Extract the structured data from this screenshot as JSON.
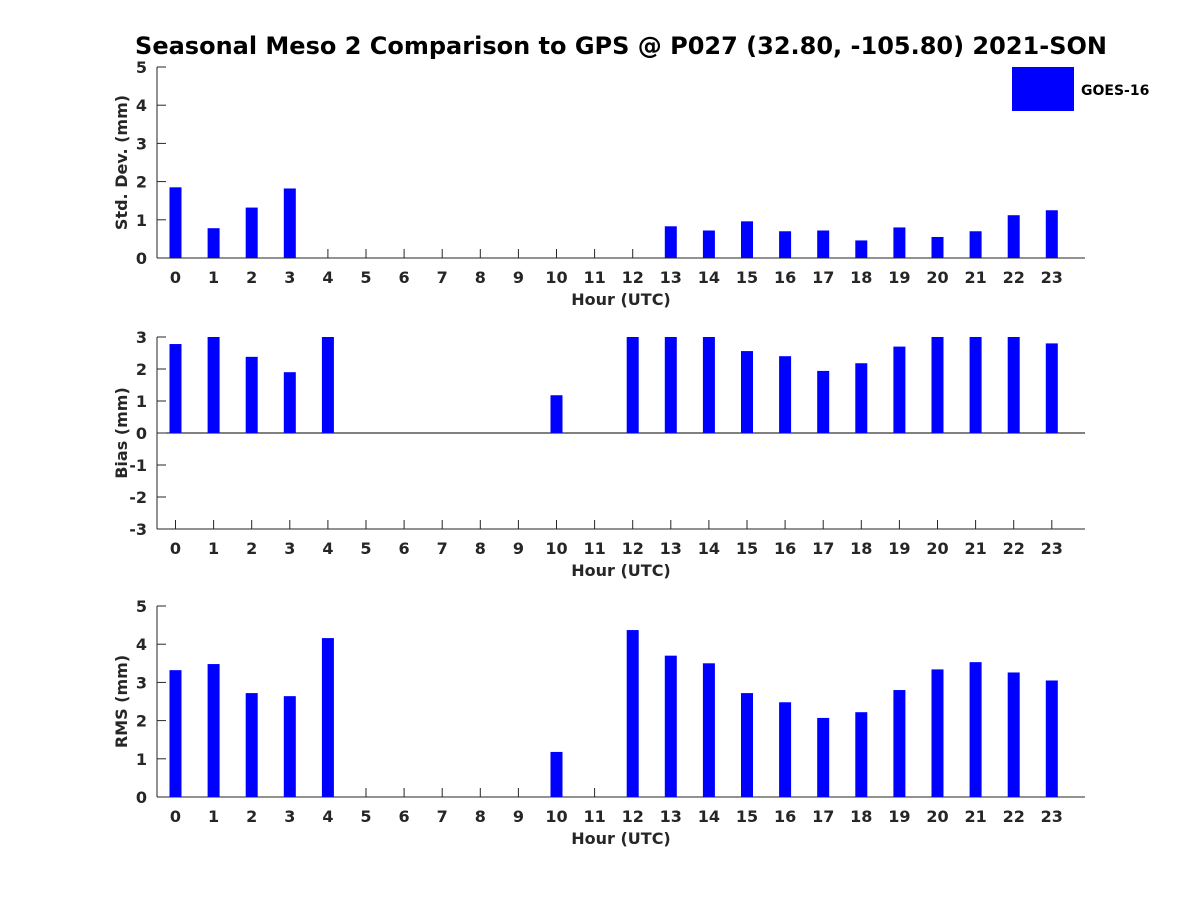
{
  "figure": {
    "title": "Seasonal Meso 2 Comparison to GPS @ P027 (32.80, -105.80) 2021-SON",
    "legend": {
      "label": "GOES-16",
      "color": "#0000ff",
      "placement": "top-right"
    }
  },
  "chart_data": [
    {
      "type": "bar",
      "categories": [
        "0",
        "1",
        "2",
        "3",
        "4",
        "5",
        "6",
        "7",
        "8",
        "9",
        "10",
        "11",
        "12",
        "13",
        "14",
        "15",
        "16",
        "17",
        "18",
        "19",
        "20",
        "21",
        "22",
        "23"
      ],
      "series": [
        {
          "name": "GOES-16",
          "color": "#0000ff",
          "values": [
            1.85,
            0.78,
            1.32,
            1.82,
            0,
            0,
            0,
            0,
            0,
            0,
            0,
            0,
            0,
            0.83,
            0.72,
            0.96,
            0.7,
            0.72,
            0.46,
            0.8,
            0.55,
            0.7,
            1.12,
            1.25
          ]
        }
      ],
      "xlabel": "Hour (UTC)",
      "ylabel": "Std. Dev. (mm)",
      "ylim": [
        0,
        5
      ],
      "yticks": [
        "0",
        "1",
        "2",
        "3",
        "4",
        "5"
      ],
      "grid": false
    },
    {
      "type": "bar",
      "categories": [
        "0",
        "1",
        "2",
        "3",
        "4",
        "5",
        "6",
        "7",
        "8",
        "9",
        "10",
        "11",
        "12",
        "13",
        "14",
        "15",
        "16",
        "17",
        "18",
        "19",
        "20",
        "21",
        "22",
        "23"
      ],
      "series": [
        {
          "name": "GOES-16",
          "color": "#0000ff",
          "values": [
            2.78,
            3.0,
            2.38,
            1.9,
            3.0,
            0,
            0,
            0,
            0,
            0,
            1.18,
            0,
            3.0,
            3.0,
            3.0,
            2.56,
            2.4,
            1.94,
            2.18,
            2.7,
            3.0,
            3.0,
            3.0,
            2.8
          ]
        }
      ],
      "xlabel": "Hour (UTC)",
      "ylabel": "Bias (mm)",
      "ylim": [
        -3,
        3
      ],
      "yticks": [
        "-3",
        "-2",
        "-1",
        "0",
        "1",
        "2",
        "3"
      ],
      "grid": false
    },
    {
      "type": "bar",
      "categories": [
        "0",
        "1",
        "2",
        "3",
        "4",
        "5",
        "6",
        "7",
        "8",
        "9",
        "10",
        "11",
        "12",
        "13",
        "14",
        "15",
        "16",
        "17",
        "18",
        "19",
        "20",
        "21",
        "22",
        "23"
      ],
      "series": [
        {
          "name": "GOES-16",
          "color": "#0000ff",
          "values": [
            3.32,
            3.48,
            2.72,
            2.64,
            4.16,
            0,
            0,
            0,
            0,
            0,
            1.18,
            0,
            4.37,
            3.7,
            3.5,
            2.72,
            2.48,
            2.07,
            2.22,
            2.8,
            3.34,
            3.53,
            3.26,
            3.05
          ]
        }
      ],
      "xlabel": "Hour (UTC)",
      "ylabel": "RMS (mm)",
      "ylim": [
        0,
        5
      ],
      "yticks": [
        "0",
        "1",
        "2",
        "3",
        "4",
        "5"
      ],
      "grid": false
    }
  ]
}
